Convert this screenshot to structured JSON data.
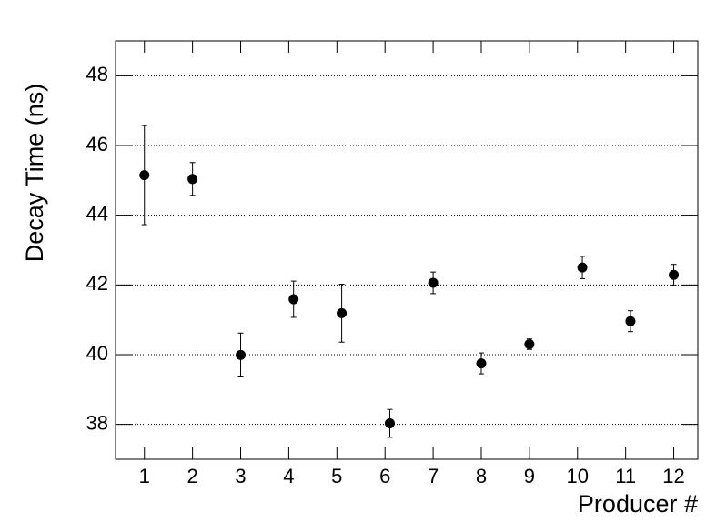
{
  "chart_data": {
    "type": "scatter",
    "x_label": "Producer #",
    "y_label": "Decay Time (ns)",
    "x": [
      1,
      2,
      3,
      4.1,
      5.1,
      6.1,
      7,
      8,
      9,
      10.1,
      11.1,
      12
    ],
    "values": [
      45.15,
      45.04,
      39.99,
      41.59,
      41.19,
      38.03,
      42.06,
      39.75,
      40.3,
      42.5,
      40.96,
      42.29
    ],
    "errors": [
      1.42,
      0.47,
      0.63,
      0.52,
      0.83,
      0.4,
      0.31,
      0.3,
      0.15,
      0.32,
      0.3,
      0.3
    ],
    "color": "#000000",
    "xlim": [
      0.4,
      12.5
    ],
    "xticks": [
      1,
      2,
      3,
      4,
      5,
      6,
      7,
      8,
      9,
      10,
      11,
      12
    ],
    "ylim": [
      37,
      49
    ],
    "yticks": [
      38,
      40,
      42,
      44,
      46,
      48
    ],
    "grid": true
  }
}
